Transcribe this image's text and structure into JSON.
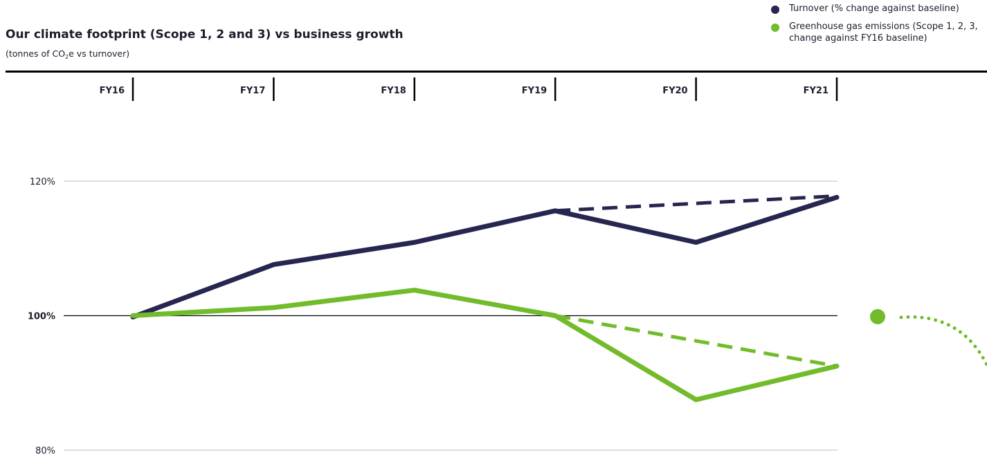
{
  "chart_data": {
    "type": "line",
    "title": "Our climate footprint (Scope 1, 2 and 3) vs business growth",
    "subtitle": {
      "prefix": "(tonnes of CO",
      "sub": "2",
      "suffix": "e vs turnover)"
    },
    "categories": [
      "FY16",
      "FY17",
      "FY18",
      "FY19",
      "FY20",
      "FY21"
    ],
    "y_ticks": [
      {
        "value": 120,
        "label": "120%"
      },
      {
        "value": 100,
        "label": "100%"
      },
      {
        "value": 80,
        "label": "80%"
      }
    ],
    "ylim": [
      80,
      120
    ],
    "series": [
      {
        "name": "Turnover (% change against baseline)",
        "color": "#262650",
        "values": [
          99.8,
          107.6,
          110.9,
          115.6,
          110.9,
          117.6
        ],
        "trend": {
          "from": "FY19",
          "to": "FY21",
          "values": [
            115.6,
            117.8
          ]
        }
      },
      {
        "name": "Greenhouse gas emissions (Scope 1, 2, 3, change against FY16 baseline)",
        "color": "#72bb2b",
        "values": [
          100.0,
          101.2,
          103.8,
          100.0,
          87.5,
          92.5
        ],
        "trend": {
          "from": "FY19",
          "to": "FY21",
          "values": [
            100.0,
            92.5
          ]
        }
      }
    ],
    "legend": {
      "items": [
        {
          "label": "Turnover (% change against baseline)",
          "color": "#262650"
        },
        {
          "label": "Greenhouse gas emissions (Scope 1, 2, 3, change against FY16 baseline)",
          "color": "#72bb2b"
        }
      ],
      "position": "top-right"
    },
    "grid": true
  }
}
